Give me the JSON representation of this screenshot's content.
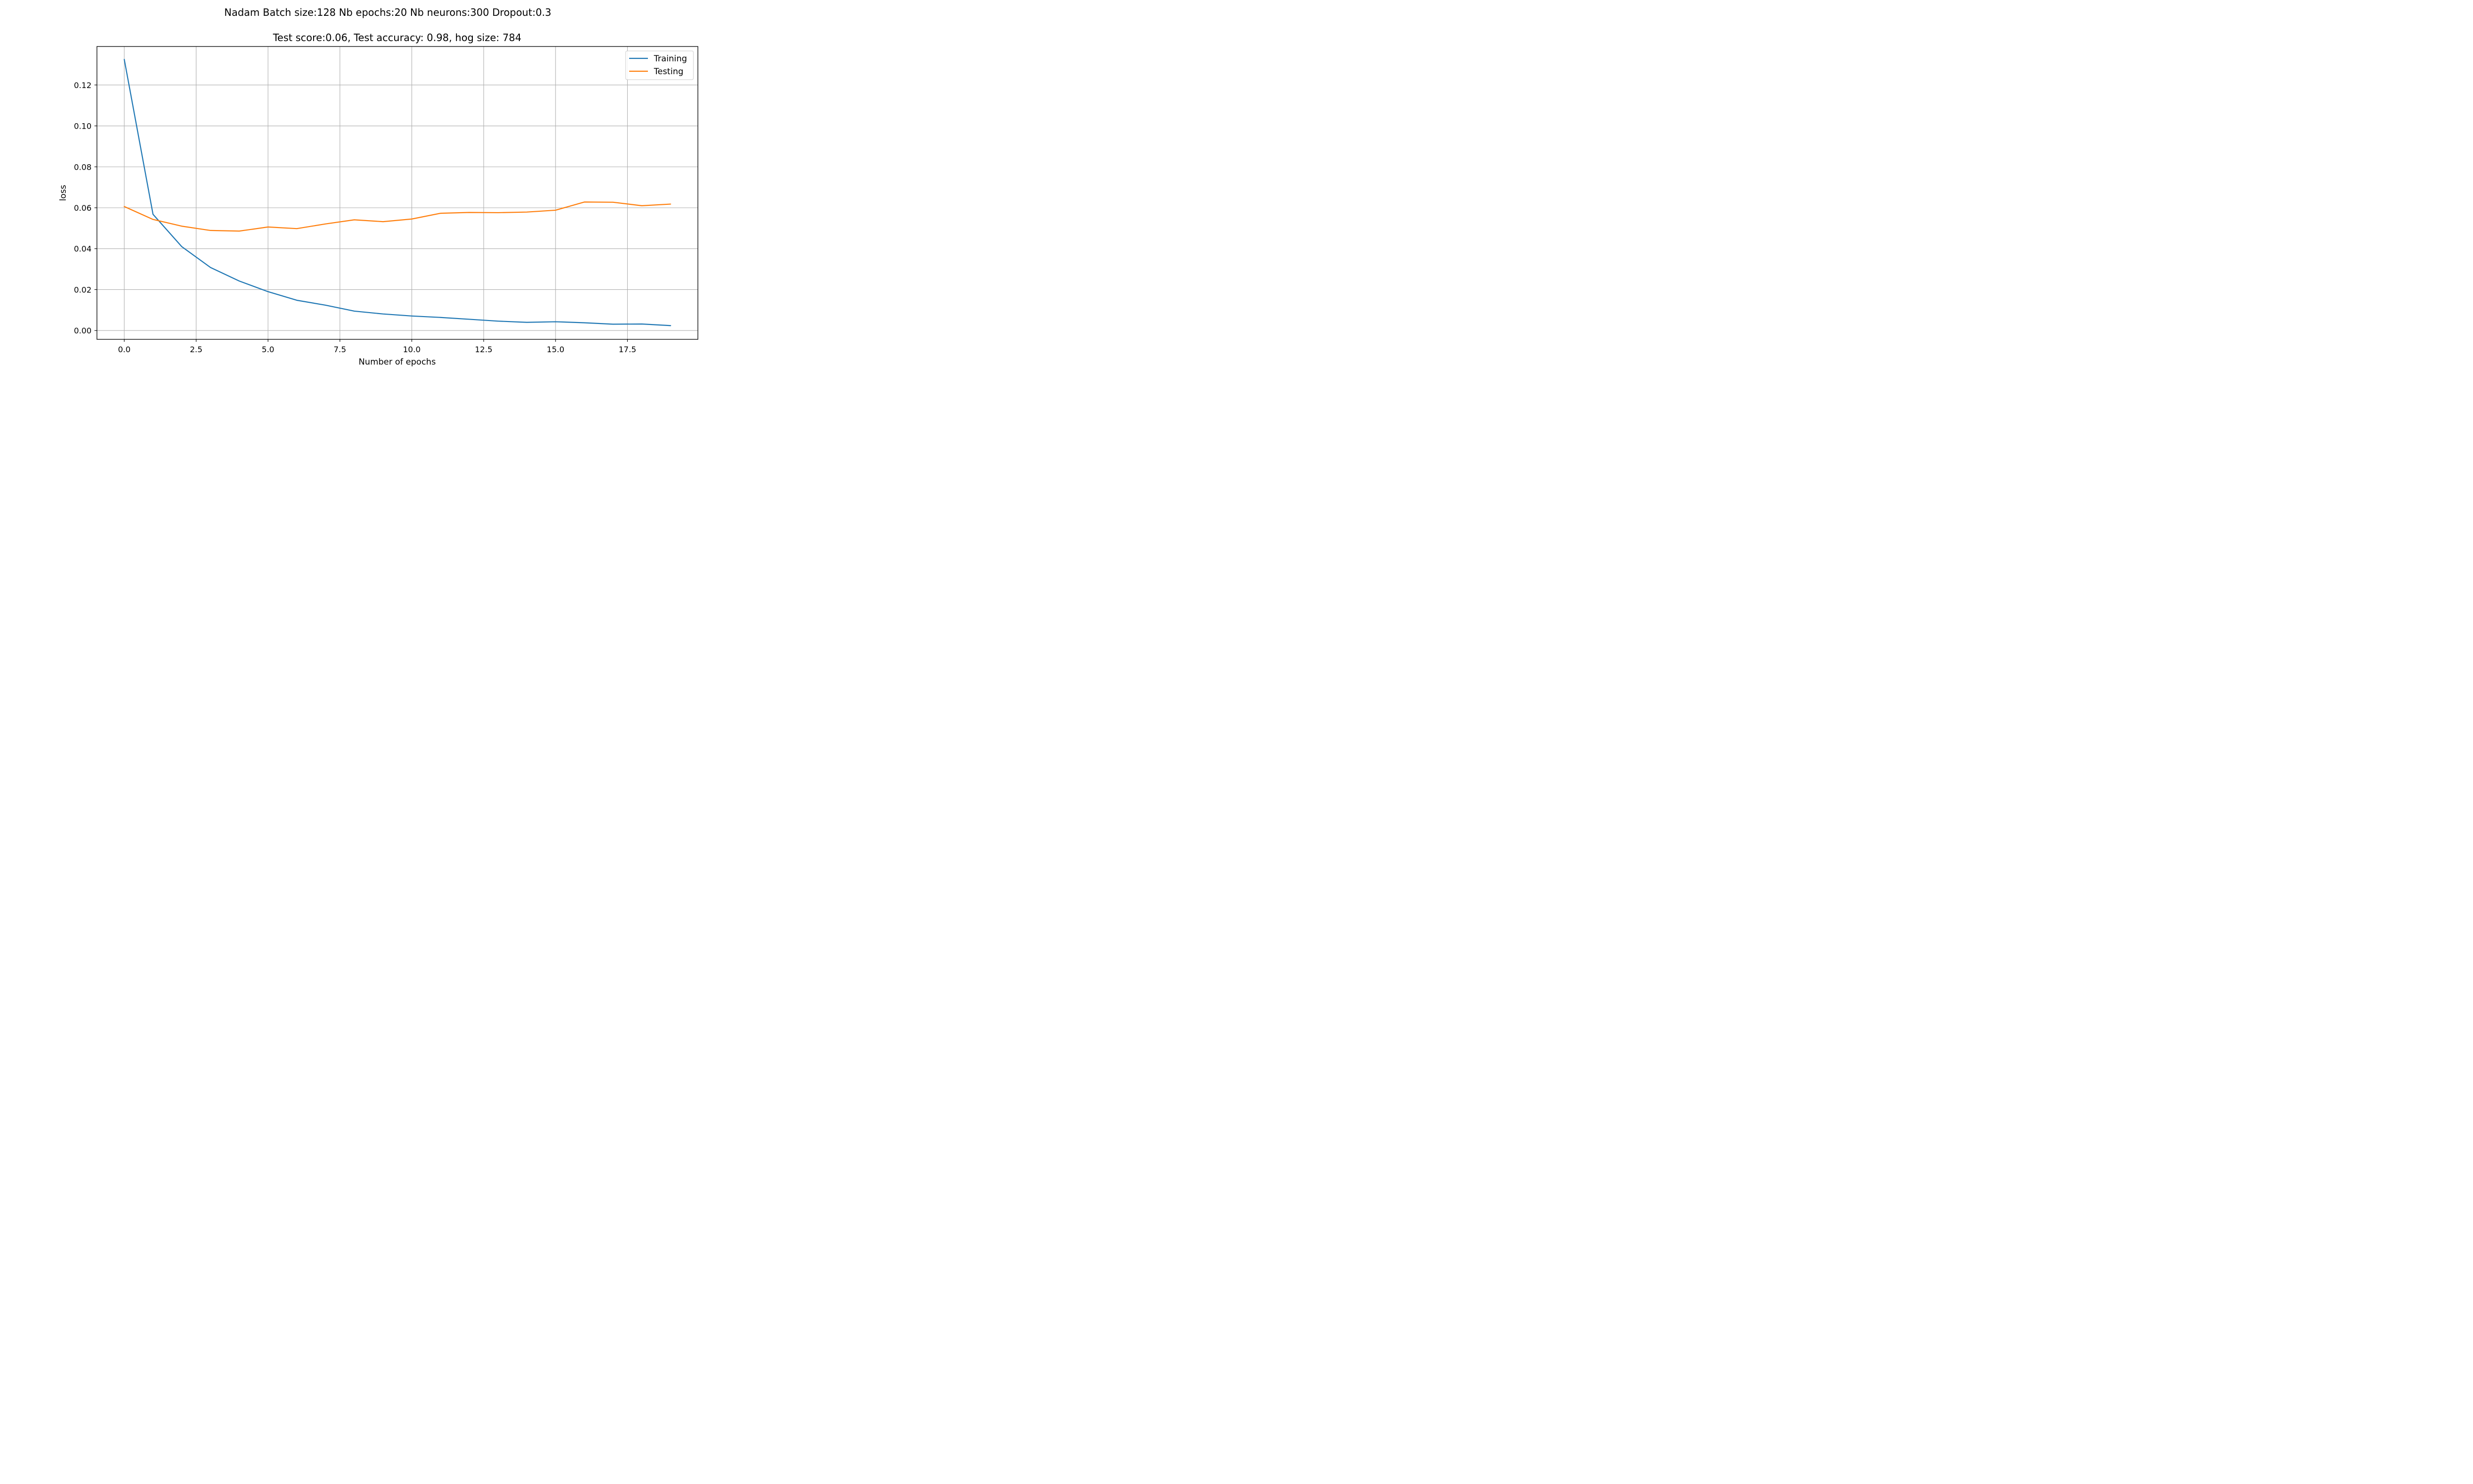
{
  "chart_data": {
    "type": "line",
    "suptitle": "Nadam Batch size:128 Nb epochs:20 Nb neurons:300 Dropout:0.3",
    "title": "Test score:0.06, Test accuracy: 0.98, hog size: 784",
    "xlabel": "Number of epochs",
    "ylabel": "loss",
    "xlim": [
      -0.95,
      19.95
    ],
    "ylim": [
      -0.0043,
      0.1388
    ],
    "xticks": [
      0.0,
      2.5,
      5.0,
      7.5,
      10.0,
      12.5,
      15.0,
      17.5
    ],
    "xtick_labels": [
      "0.0",
      "2.5",
      "5.0",
      "7.5",
      "10.0",
      "12.5",
      "15.0",
      "17.5"
    ],
    "yticks": [
      0.0,
      0.02,
      0.04,
      0.06,
      0.08,
      0.1,
      0.12
    ],
    "ytick_labels": [
      "0.00",
      "0.02",
      "0.04",
      "0.06",
      "0.08",
      "0.10",
      "0.12"
    ],
    "grid": true,
    "legend_position": "top-right",
    "x": [
      0,
      1,
      2,
      3,
      4,
      5,
      6,
      7,
      8,
      9,
      10,
      11,
      12,
      13,
      14,
      15,
      16,
      17,
      18,
      19
    ],
    "series": [
      {
        "name": "Training",
        "color": "#1f77b4",
        "values": [
          0.1325,
          0.0568,
          0.041,
          0.0308,
          0.0242,
          0.019,
          0.0148,
          0.0124,
          0.0095,
          0.0081,
          0.0071,
          0.0064,
          0.0055,
          0.0046,
          0.004,
          0.0043,
          0.0038,
          0.0031,
          0.0032,
          0.0024
        ]
      },
      {
        "name": "Testing",
        "color": "#ff7f0e",
        "values": [
          0.0606,
          0.0543,
          0.051,
          0.0489,
          0.0486,
          0.0506,
          0.0498,
          0.0521,
          0.0541,
          0.0532,
          0.0545,
          0.0573,
          0.0577,
          0.0576,
          0.0579,
          0.0588,
          0.0628,
          0.0627,
          0.061,
          0.0618
        ]
      }
    ]
  }
}
